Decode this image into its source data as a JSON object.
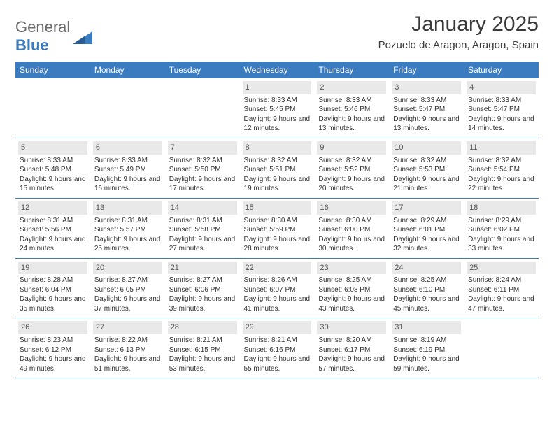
{
  "logo": {
    "line1": "General",
    "line2": "Blue"
  },
  "title": "January 2025",
  "location": "Pozuelo de Aragon, Aragon, Spain",
  "colors": {
    "header_bg": "#3b7bbf",
    "header_text": "#ffffff",
    "daynum_bg": "#e9e9e9",
    "row_border": "#3b7bbf",
    "body_text": "#333333",
    "logo_gray": "#6b6b6b",
    "logo_blue": "#3b7bbf"
  },
  "dayHeaders": [
    "Sunday",
    "Monday",
    "Tuesday",
    "Wednesday",
    "Thursday",
    "Friday",
    "Saturday"
  ],
  "weeks": [
    [
      null,
      null,
      null,
      {
        "n": "1",
        "sr": "8:33 AM",
        "ss": "5:45 PM",
        "dl": "9 hours and 12 minutes."
      },
      {
        "n": "2",
        "sr": "8:33 AM",
        "ss": "5:46 PM",
        "dl": "9 hours and 13 minutes."
      },
      {
        "n": "3",
        "sr": "8:33 AM",
        "ss": "5:47 PM",
        "dl": "9 hours and 13 minutes."
      },
      {
        "n": "4",
        "sr": "8:33 AM",
        "ss": "5:47 PM",
        "dl": "9 hours and 14 minutes."
      }
    ],
    [
      {
        "n": "5",
        "sr": "8:33 AM",
        "ss": "5:48 PM",
        "dl": "9 hours and 15 minutes."
      },
      {
        "n": "6",
        "sr": "8:33 AM",
        "ss": "5:49 PM",
        "dl": "9 hours and 16 minutes."
      },
      {
        "n": "7",
        "sr": "8:32 AM",
        "ss": "5:50 PM",
        "dl": "9 hours and 17 minutes."
      },
      {
        "n": "8",
        "sr": "8:32 AM",
        "ss": "5:51 PM",
        "dl": "9 hours and 19 minutes."
      },
      {
        "n": "9",
        "sr": "8:32 AM",
        "ss": "5:52 PM",
        "dl": "9 hours and 20 minutes."
      },
      {
        "n": "10",
        "sr": "8:32 AM",
        "ss": "5:53 PM",
        "dl": "9 hours and 21 minutes."
      },
      {
        "n": "11",
        "sr": "8:32 AM",
        "ss": "5:54 PM",
        "dl": "9 hours and 22 minutes."
      }
    ],
    [
      {
        "n": "12",
        "sr": "8:31 AM",
        "ss": "5:56 PM",
        "dl": "9 hours and 24 minutes."
      },
      {
        "n": "13",
        "sr": "8:31 AM",
        "ss": "5:57 PM",
        "dl": "9 hours and 25 minutes."
      },
      {
        "n": "14",
        "sr": "8:31 AM",
        "ss": "5:58 PM",
        "dl": "9 hours and 27 minutes."
      },
      {
        "n": "15",
        "sr": "8:30 AM",
        "ss": "5:59 PM",
        "dl": "9 hours and 28 minutes."
      },
      {
        "n": "16",
        "sr": "8:30 AM",
        "ss": "6:00 PM",
        "dl": "9 hours and 30 minutes."
      },
      {
        "n": "17",
        "sr": "8:29 AM",
        "ss": "6:01 PM",
        "dl": "9 hours and 32 minutes."
      },
      {
        "n": "18",
        "sr": "8:29 AM",
        "ss": "6:02 PM",
        "dl": "9 hours and 33 minutes."
      }
    ],
    [
      {
        "n": "19",
        "sr": "8:28 AM",
        "ss": "6:04 PM",
        "dl": "9 hours and 35 minutes."
      },
      {
        "n": "20",
        "sr": "8:27 AM",
        "ss": "6:05 PM",
        "dl": "9 hours and 37 minutes."
      },
      {
        "n": "21",
        "sr": "8:27 AM",
        "ss": "6:06 PM",
        "dl": "9 hours and 39 minutes."
      },
      {
        "n": "22",
        "sr": "8:26 AM",
        "ss": "6:07 PM",
        "dl": "9 hours and 41 minutes."
      },
      {
        "n": "23",
        "sr": "8:25 AM",
        "ss": "6:08 PM",
        "dl": "9 hours and 43 minutes."
      },
      {
        "n": "24",
        "sr": "8:25 AM",
        "ss": "6:10 PM",
        "dl": "9 hours and 45 minutes."
      },
      {
        "n": "25",
        "sr": "8:24 AM",
        "ss": "6:11 PM",
        "dl": "9 hours and 47 minutes."
      }
    ],
    [
      {
        "n": "26",
        "sr": "8:23 AM",
        "ss": "6:12 PM",
        "dl": "9 hours and 49 minutes."
      },
      {
        "n": "27",
        "sr": "8:22 AM",
        "ss": "6:13 PM",
        "dl": "9 hours and 51 minutes."
      },
      {
        "n": "28",
        "sr": "8:21 AM",
        "ss": "6:15 PM",
        "dl": "9 hours and 53 minutes."
      },
      {
        "n": "29",
        "sr": "8:21 AM",
        "ss": "6:16 PM",
        "dl": "9 hours and 55 minutes."
      },
      {
        "n": "30",
        "sr": "8:20 AM",
        "ss": "6:17 PM",
        "dl": "9 hours and 57 minutes."
      },
      {
        "n": "31",
        "sr": "8:19 AM",
        "ss": "6:19 PM",
        "dl": "9 hours and 59 minutes."
      },
      null
    ]
  ],
  "labels": {
    "sunrise": "Sunrise:",
    "sunset": "Sunset:",
    "daylight": "Daylight:"
  }
}
